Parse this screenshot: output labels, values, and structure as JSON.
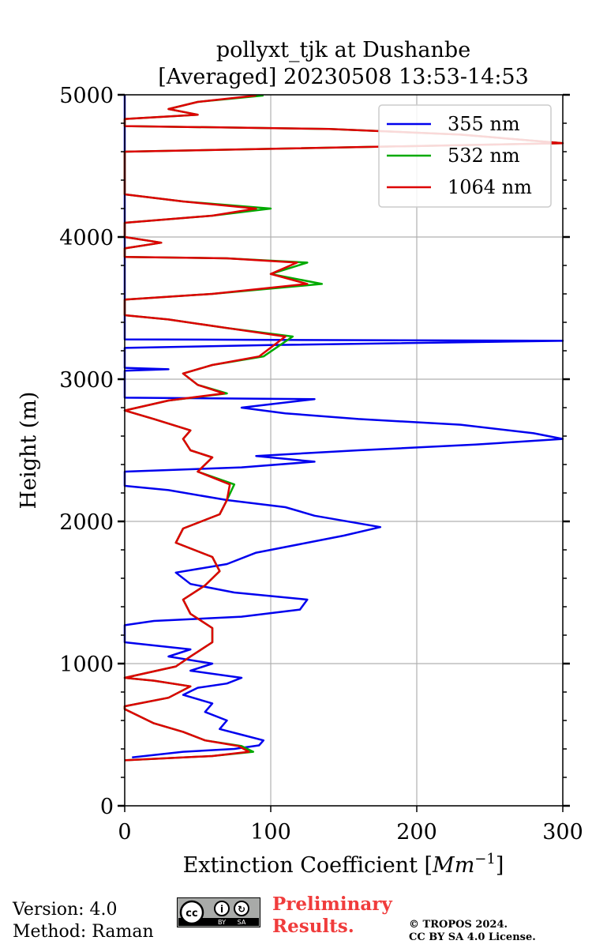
{
  "chart_data": {
    "type": "line",
    "title": [
      "pollyxt_tjk at Dushanbe",
      "[Averaged] 20230508 13:53-14:53"
    ],
    "xlabel": "Extinction Coefficient [Mm⁻¹]",
    "xlabel_main": "Extinction Coefficient [",
    "xlabel_unit": "Mm",
    "xlabel_exp": "−1",
    "xlabel_close": "]",
    "ylabel": "Height (m)",
    "xlim": [
      0,
      300
    ],
    "ylim": [
      0,
      5000
    ],
    "xticks": [
      0,
      100,
      200,
      300
    ],
    "yticks": [
      0,
      1000,
      2000,
      3000,
      4000,
      5000
    ],
    "grid": true,
    "legend_position": "top-right",
    "series": [
      {
        "name": "355 nm",
        "color": "#0000ee",
        "points": [
          [
            5,
            340
          ],
          [
            40,
            380
          ],
          [
            75,
            400
          ],
          [
            92,
            425
          ],
          [
            95,
            460
          ],
          [
            80,
            500
          ],
          [
            65,
            540
          ],
          [
            70,
            600
          ],
          [
            55,
            660
          ],
          [
            60,
            720
          ],
          [
            40,
            780
          ],
          [
            50,
            830
          ],
          [
            70,
            860
          ],
          [
            80,
            900
          ],
          [
            45,
            950
          ],
          [
            60,
            1000
          ],
          [
            30,
            1050
          ],
          [
            45,
            1100
          ],
          [
            0,
            1150
          ],
          [
            0,
            1270
          ],
          [
            20,
            1300
          ],
          [
            80,
            1330
          ],
          [
            120,
            1380
          ],
          [
            125,
            1450
          ],
          [
            75,
            1500
          ],
          [
            45,
            1560
          ],
          [
            35,
            1640
          ],
          [
            70,
            1700
          ],
          [
            90,
            1780
          ],
          [
            125,
            1850
          ],
          [
            150,
            1900
          ],
          [
            175,
            1960
          ],
          [
            130,
            2040
          ],
          [
            110,
            2100
          ],
          [
            70,
            2150
          ],
          [
            30,
            2220
          ],
          [
            0,
            2250
          ],
          [
            0,
            2350
          ],
          [
            80,
            2380
          ],
          [
            130,
            2420
          ],
          [
            90,
            2460
          ],
          [
            160,
            2500
          ],
          [
            240,
            2540
          ],
          [
            300,
            2580
          ],
          [
            280,
            2620
          ],
          [
            230,
            2680
          ],
          [
            160,
            2720
          ],
          [
            110,
            2760
          ],
          [
            80,
            2800
          ],
          [
            130,
            2860
          ],
          [
            0,
            2870
          ],
          [
            0,
            3060
          ],
          [
            30,
            3070
          ],
          [
            0,
            3080
          ],
          [
            0,
            3220
          ],
          [
            100,
            3240
          ],
          [
            300,
            3270
          ],
          [
            0,
            3280
          ],
          [
            0,
            5000
          ]
        ]
      },
      {
        "name": "532 nm",
        "color": "#00aa00",
        "points": [
          [
            0,
            320
          ],
          [
            60,
            350
          ],
          [
            88,
            380
          ],
          [
            80,
            420
          ],
          [
            55,
            460
          ],
          [
            40,
            520
          ],
          [
            20,
            580
          ],
          [
            0,
            680
          ],
          [
            0,
            700
          ],
          [
            30,
            760
          ],
          [
            45,
            840
          ],
          [
            20,
            880
          ],
          [
            0,
            900
          ],
          [
            35,
            980
          ],
          [
            45,
            1050
          ],
          [
            60,
            1150
          ],
          [
            60,
            1250
          ],
          [
            45,
            1350
          ],
          [
            40,
            1450
          ],
          [
            55,
            1550
          ],
          [
            65,
            1650
          ],
          [
            60,
            1750
          ],
          [
            35,
            1850
          ],
          [
            40,
            1950
          ],
          [
            65,
            2050
          ],
          [
            70,
            2150
          ],
          [
            75,
            2260
          ],
          [
            50,
            2350
          ],
          [
            60,
            2450
          ],
          [
            45,
            2500
          ],
          [
            40,
            2580
          ],
          [
            45,
            2640
          ],
          [
            20,
            2720
          ],
          [
            0,
            2780
          ],
          [
            30,
            2850
          ],
          [
            70,
            2900
          ],
          [
            50,
            2960
          ],
          [
            40,
            3040
          ],
          [
            60,
            3100
          ],
          [
            95,
            3160
          ],
          [
            115,
            3300
          ],
          [
            70,
            3360
          ],
          [
            30,
            3420
          ],
          [
            0,
            3450
          ],
          [
            0,
            3560
          ],
          [
            60,
            3600
          ],
          [
            135,
            3670
          ],
          [
            100,
            3740
          ],
          [
            125,
            3820
          ],
          [
            70,
            3850
          ],
          [
            0,
            3860
          ],
          [
            0,
            3920
          ],
          [
            25,
            3960
          ],
          [
            0,
            4000
          ],
          [
            0,
            4100
          ],
          [
            60,
            4150
          ],
          [
            100,
            4200
          ],
          [
            40,
            4250
          ],
          [
            0,
            4300
          ],
          [
            0,
            4600
          ],
          [
            100,
            4620
          ],
          [
            300,
            4660
          ],
          [
            230,
            4720
          ],
          [
            140,
            4760
          ],
          [
            0,
            4780
          ],
          [
            0,
            4830
          ],
          [
            50,
            4860
          ],
          [
            30,
            4900
          ],
          [
            50,
            4950
          ],
          [
            95,
            4995
          ]
        ]
      },
      {
        "name": "1064 nm",
        "color": "#dd0000",
        "points": [
          [
            0,
            320
          ],
          [
            60,
            350
          ],
          [
            85,
            380
          ],
          [
            78,
            420
          ],
          [
            55,
            460
          ],
          [
            40,
            520
          ],
          [
            20,
            580
          ],
          [
            0,
            680
          ],
          [
            0,
            700
          ],
          [
            30,
            760
          ],
          [
            45,
            840
          ],
          [
            20,
            880
          ],
          [
            0,
            900
          ],
          [
            35,
            980
          ],
          [
            45,
            1050
          ],
          [
            60,
            1150
          ],
          [
            60,
            1250
          ],
          [
            45,
            1350
          ],
          [
            40,
            1450
          ],
          [
            55,
            1550
          ],
          [
            65,
            1650
          ],
          [
            60,
            1750
          ],
          [
            35,
            1850
          ],
          [
            40,
            1950
          ],
          [
            65,
            2050
          ],
          [
            70,
            2150
          ],
          [
            72,
            2260
          ],
          [
            50,
            2350
          ],
          [
            60,
            2450
          ],
          [
            45,
            2500
          ],
          [
            40,
            2580
          ],
          [
            45,
            2640
          ],
          [
            20,
            2720
          ],
          [
            0,
            2780
          ],
          [
            30,
            2850
          ],
          [
            68,
            2900
          ],
          [
            50,
            2960
          ],
          [
            40,
            3040
          ],
          [
            60,
            3100
          ],
          [
            92,
            3160
          ],
          [
            110,
            3300
          ],
          [
            70,
            3360
          ],
          [
            30,
            3420
          ],
          [
            0,
            3450
          ],
          [
            0,
            3560
          ],
          [
            60,
            3600
          ],
          [
            125,
            3670
          ],
          [
            100,
            3740
          ],
          [
            118,
            3820
          ],
          [
            70,
            3850
          ],
          [
            0,
            3860
          ],
          [
            0,
            3920
          ],
          [
            25,
            3960
          ],
          [
            0,
            4000
          ],
          [
            0,
            4100
          ],
          [
            60,
            4150
          ],
          [
            90,
            4200
          ],
          [
            40,
            4250
          ],
          [
            0,
            4300
          ],
          [
            0,
            4600
          ],
          [
            100,
            4620
          ],
          [
            300,
            4660
          ],
          [
            230,
            4720
          ],
          [
            140,
            4760
          ],
          [
            0,
            4780
          ],
          [
            0,
            4830
          ],
          [
            50,
            4860
          ],
          [
            30,
            4900
          ],
          [
            50,
            4950
          ],
          [
            90,
            4995
          ]
        ]
      }
    ]
  },
  "footer": {
    "version": "Version: 4.0",
    "method": "Method: Raman",
    "preliminary_line1": "Preliminary",
    "preliminary_line2": "Results.",
    "copyright_line1": "© TROPOS 2024.",
    "copyright_line2": "CC BY SA 4.0 License.",
    "license_badge": "cc BY SA"
  }
}
